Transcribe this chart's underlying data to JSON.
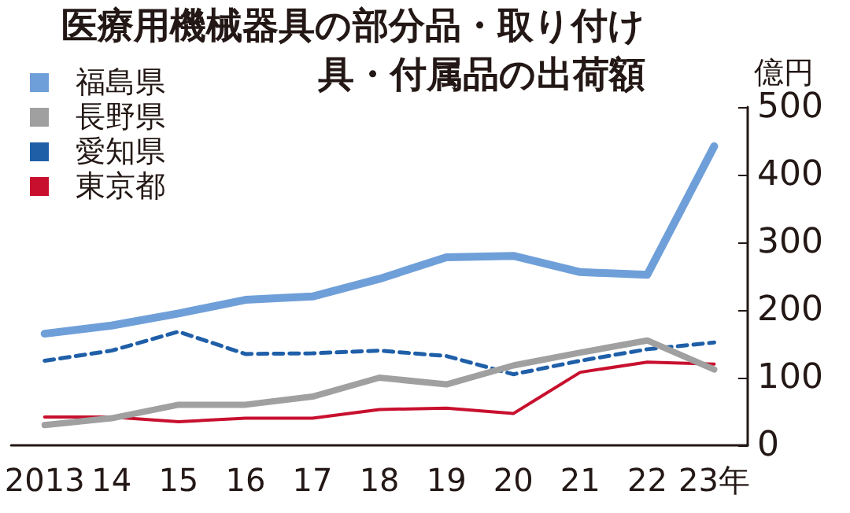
{
  "chart_data": {
    "type": "line",
    "title": "医療用機械器具の部分品・取り付け具・付属品の出荷額",
    "ylabel": "億円",
    "categories": [
      "2013",
      "14",
      "15",
      "16",
      "17",
      "18",
      "19",
      "20",
      "21",
      "22",
      "23年"
    ],
    "series": [
      {
        "name": "福島県",
        "color": "#6f9fd8",
        "values": [
          165,
          177,
          195,
          215,
          220,
          246,
          278,
          280,
          256,
          252,
          442
        ]
      },
      {
        "name": "長野県",
        "color": "#a0a0a0",
        "values": [
          30,
          40,
          60,
          60,
          72,
          100,
          90,
          118,
          137,
          155,
          112
        ]
      },
      {
        "name": "愛知県",
        "color": "#1f5fa8",
        "line_style": "dashed",
        "values": [
          125,
          140,
          168,
          135,
          136,
          140,
          132,
          105,
          125,
          142,
          152
        ]
      },
      {
        "name": "東京都",
        "color": "#c8102e",
        "values": [
          42,
          42,
          35,
          40,
          40,
          53,
          55,
          47,
          108,
          123,
          120
        ]
      }
    ],
    "ylim": [
      0,
      500
    ],
    "yticks": [
      0,
      100,
      200,
      300,
      400,
      500
    ],
    "grid": false,
    "legend": "top left",
    "marker": "none"
  }
}
